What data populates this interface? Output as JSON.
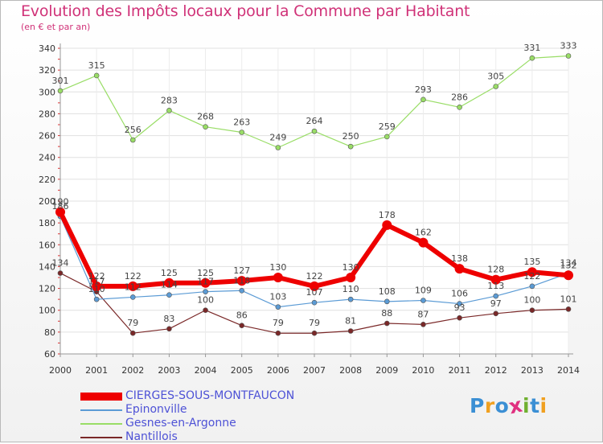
{
  "header": {
    "title": "Evolution des Impôts locaux pour la Commune par Habitant",
    "subtitle": "(en € et par an)"
  },
  "logo": {
    "text": "Proxiti",
    "letters": [
      "P",
      "r",
      "o",
      "x",
      "i",
      "t",
      "i"
    ],
    "colors": [
      "#3b8fd4",
      "#f0a020",
      "#3b8fd4",
      "#e03080",
      "#70b030",
      "#3b8fd4",
      "#f0a020"
    ]
  },
  "chart_data": {
    "type": "line",
    "title": "Evolution des Impôts locaux pour la Commune par Habitant",
    "subtitle": "(en € et par an)",
    "xlabel": "",
    "ylabel": "",
    "x": [
      2000,
      2001,
      2002,
      2003,
      2004,
      2005,
      2006,
      2007,
      2008,
      2009,
      2010,
      2011,
      2012,
      2013,
      2014
    ],
    "ylim": [
      60,
      340
    ],
    "yticks": [
      60,
      80,
      100,
      120,
      140,
      160,
      180,
      200,
      220,
      240,
      260,
      280,
      300,
      320,
      340
    ],
    "grid": true,
    "legend_position": "bottom-left",
    "series": [
      {
        "name": "CIERGES-SOUS-MONTFAUCON",
        "color": "#ee0000",
        "style": "thick",
        "values": [
          190,
          122,
          122,
          125,
          125,
          127,
          130,
          122,
          130,
          178,
          162,
          138,
          128,
          135,
          132
        ],
        "labels": [
          "190",
          "122",
          "122",
          "125",
          "125",
          "127",
          "130",
          "122",
          "130",
          "178",
          "162",
          "138",
          "128",
          "135",
          "132"
        ]
      },
      {
        "name": "Epinonville",
        "color": "#5b9bd5",
        "style": "thin",
        "values": [
          186,
          110,
          112,
          114,
          117,
          118,
          103,
          107,
          110,
          108,
          109,
          106,
          113,
          122,
          134
        ],
        "labels": [
          "186",
          "110",
          "112",
          "114",
          "117",
          "118",
          "103",
          "107",
          "110",
          "108",
          "109",
          "106",
          "113",
          "122",
          "134"
        ]
      },
      {
        "name": "Gesnes-en-Argonne",
        "color": "#99dd66",
        "style": "thin",
        "values": [
          301,
          315,
          256,
          283,
          268,
          263,
          249,
          264,
          250,
          259,
          293,
          286,
          305,
          331,
          333
        ],
        "labels": [
          "301",
          "315",
          "256",
          "283",
          "268",
          "263",
          "249",
          "264",
          "250",
          "259",
          "293",
          "286",
          "305",
          "331",
          "333"
        ]
      },
      {
        "name": "Nantillois",
        "color": "#7a2828",
        "style": "thin",
        "values": [
          134,
          117,
          79,
          83,
          100,
          86,
          79,
          79,
          81,
          88,
          87,
          93,
          97,
          100,
          101
        ],
        "labels": [
          "134",
          "117",
          "79",
          "83",
          "100",
          "86",
          "79",
          "79",
          "81",
          "88",
          "87",
          "93",
          "97",
          "100",
          "101"
        ]
      }
    ]
  }
}
